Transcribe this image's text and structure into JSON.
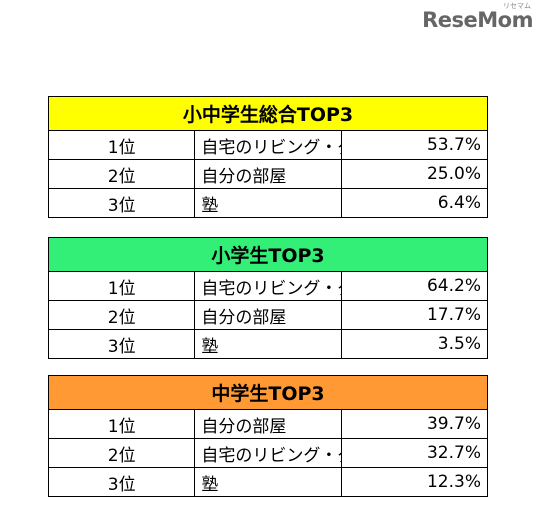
{
  "logo": {
    "text": "ReseMom",
    "ruby": "リセマム"
  },
  "colors": {
    "total": "#ffff00",
    "elementary": "#33ee77",
    "junior": "#ff9933"
  },
  "tables": [
    {
      "title": "小中学生総合TOP3",
      "rows": [
        {
          "rank": "1位",
          "place": "自宅のリビング・ダイニング",
          "percent": "53.7%"
        },
        {
          "rank": "2位",
          "place": "自分の部屋",
          "percent": "25.0%"
        },
        {
          "rank": "3位",
          "place": "塾",
          "percent": "6.4%"
        }
      ]
    },
    {
      "title": "小学生TOP3",
      "rows": [
        {
          "rank": "1位",
          "place": "自宅のリビング・ダイニング",
          "percent": "64.2%"
        },
        {
          "rank": "2位",
          "place": "自分の部屋",
          "percent": "17.7%"
        },
        {
          "rank": "3位",
          "place": "塾",
          "percent": "3.5%"
        }
      ]
    },
    {
      "title": "中学生TOP3",
      "rows": [
        {
          "rank": "1位",
          "place": "自分の部屋",
          "percent": "39.7%"
        },
        {
          "rank": "2位",
          "place": "自宅のリビング・ダイニング",
          "percent": "32.7%"
        },
        {
          "rank": "3位",
          "place": "塾",
          "percent": "12.3%"
        }
      ]
    }
  ]
}
